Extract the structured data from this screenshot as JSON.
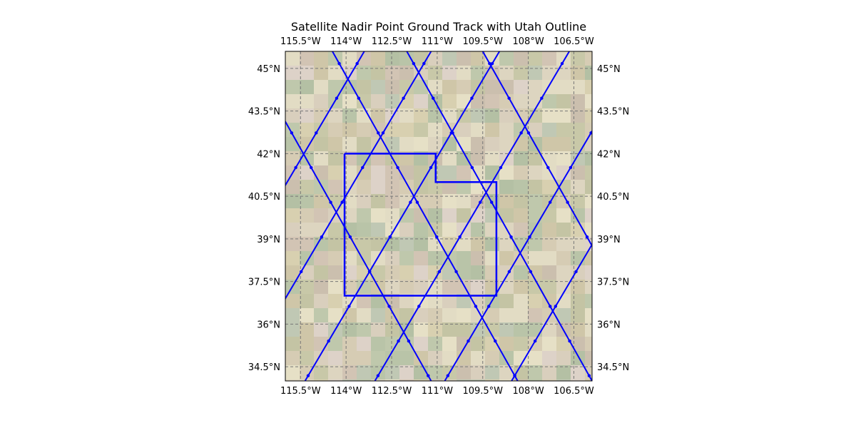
{
  "map": {
    "title": "Satellite Nadir Point Ground Track with Utah Outline",
    "extent": {
      "lon_min": -116.0,
      "lon_max": -105.9,
      "lat_min": 34.0,
      "lat_max": 45.6
    },
    "lon_ticks": [
      {
        "value": -115.5,
        "label": "115.5°W"
      },
      {
        "value": -114.0,
        "label": "114°W"
      },
      {
        "value": -112.5,
        "label": "112.5°W"
      },
      {
        "value": -111.0,
        "label": "111°W"
      },
      {
        "value": -109.5,
        "label": "109.5°W"
      },
      {
        "value": -108.0,
        "label": "108°W"
      },
      {
        "value": -106.5,
        "label": "106.5°W"
      }
    ],
    "lat_ticks": [
      {
        "value": 45.0,
        "label": "45°N"
      },
      {
        "value": 43.5,
        "label": "43.5°N"
      },
      {
        "value": 42.0,
        "label": "42°N"
      },
      {
        "value": 40.5,
        "label": "40.5°N"
      },
      {
        "value": 39.0,
        "label": "39°N"
      },
      {
        "value": 37.5,
        "label": "37.5°N"
      },
      {
        "value": 36.0,
        "label": "36°N"
      },
      {
        "value": 34.5,
        "label": "34.5°N"
      }
    ],
    "gridlines": true,
    "track_color": "#0000ff",
    "outline_color": "#0000ff",
    "grid_color": "#777777",
    "utah_outline": [
      [
        -114.05,
        42.0
      ],
      [
        -111.05,
        42.0
      ],
      [
        -111.05,
        41.0
      ],
      [
        -109.05,
        41.0
      ],
      [
        -109.05,
        37.0
      ],
      [
        -114.05,
        37.0
      ],
      [
        -114.05,
        42.0
      ]
    ],
    "ground_tracks": [
      {
        "lon_start": -113.4,
        "lon_end": -119.8
      },
      {
        "lon_start": -111.2,
        "lon_end": -117.6
      },
      {
        "lon_start": -108.95,
        "lon_end": -115.35
      },
      {
        "lon_start": -106.65,
        "lon_end": -113.05
      },
      {
        "lon_start": -104.35,
        "lon_end": -110.75
      },
      {
        "lon_start": -102.15,
        "lon_end": -108.55
      },
      {
        "lon_start": -117.3,
        "lon_end": -111.2
      },
      {
        "lon_start": -114.45,
        "lon_end": -108.35
      },
      {
        "lon_start": -112.0,
        "lon_end": -105.9
      },
      {
        "lon_start": -109.5,
        "lon_end": -103.4
      }
    ]
  }
}
